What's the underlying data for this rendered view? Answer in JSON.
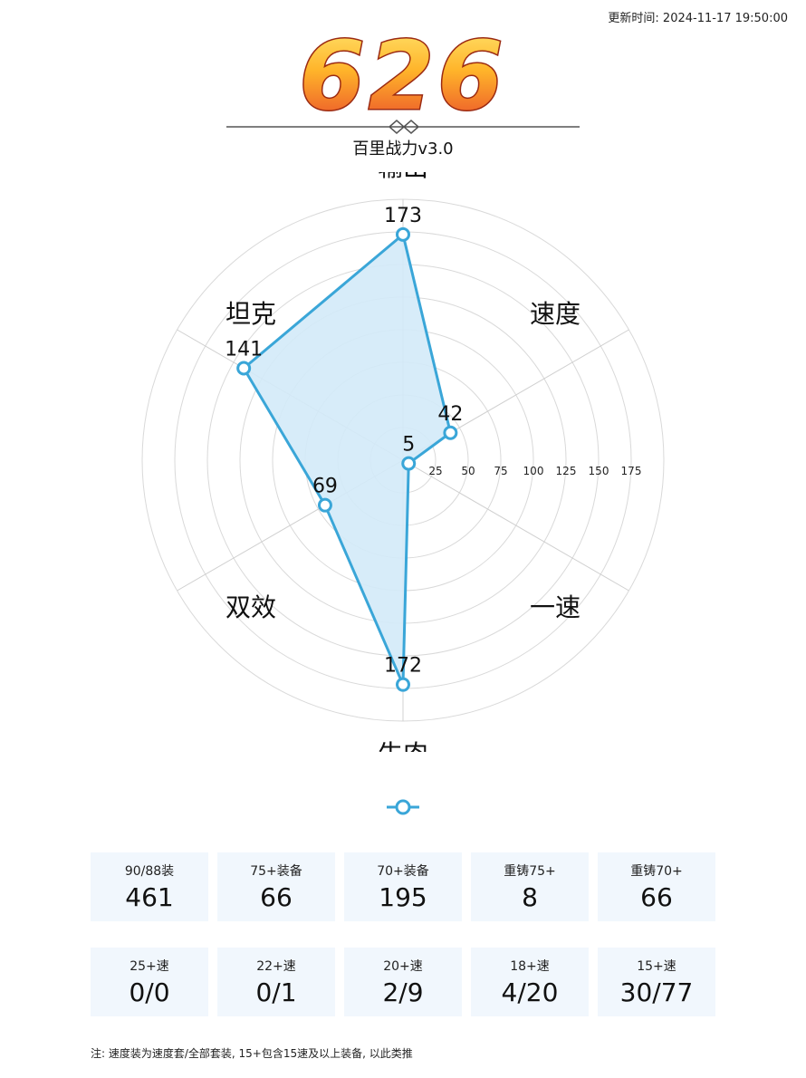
{
  "update_time": "更新时间: 2024-11-17 19:50:00",
  "score": "626",
  "subtitle": "百里战力v3.0",
  "colors": {
    "series": "#3aa6d8",
    "fill": "#d3eaf8",
    "score_top": "#ffd54a",
    "score_bottom": "#e8452a",
    "card_bg": "#f1f7fd"
  },
  "chart_data": {
    "type": "radar",
    "axes": [
      "速度",
      "一速",
      "牛肉",
      "双效",
      "坦克",
      "输出"
    ],
    "values": [
      42,
      5,
      172,
      69,
      141,
      173
    ],
    "rmax": 200,
    "ticks": [
      25,
      50,
      75,
      100,
      125,
      150,
      175
    ],
    "grid": true,
    "legend": "bottom-center"
  },
  "stats_row1": [
    {
      "label": "90/88装",
      "value": "461"
    },
    {
      "label": "75+装备",
      "value": "66"
    },
    {
      "label": "70+装备",
      "value": "195"
    },
    {
      "label": "重铸75+",
      "value": "8"
    },
    {
      "label": "重铸70+",
      "value": "66"
    }
  ],
  "stats_row2": [
    {
      "label": "25+速",
      "value": "0/0"
    },
    {
      "label": "22+速",
      "value": "0/1"
    },
    {
      "label": "20+速",
      "value": "2/9"
    },
    {
      "label": "18+速",
      "value": "4/20"
    },
    {
      "label": "15+速",
      "value": "30/77"
    }
  ],
  "note": "注: 速度装为速度套/全部套装, 15+包含15速及以上装备, 以此类推"
}
